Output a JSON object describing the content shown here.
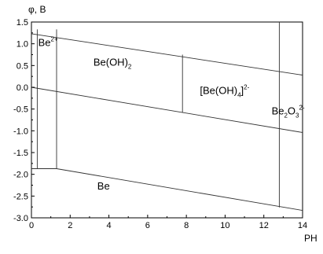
{
  "chart_data": {
    "type": "line",
    "title": "",
    "ylabel": "φ, B",
    "xlabel": "PH",
    "xlim": [
      0,
      14
    ],
    "ylim": [
      -3.0,
      1.5
    ],
    "x_ticks": [
      0,
      2,
      4,
      6,
      8,
      10,
      12,
      14
    ],
    "x_tick_labels": [
      "0",
      "2",
      "4",
      "6",
      "8",
      "10",
      "12",
      "14"
    ],
    "y_ticks": [
      1.5,
      1.0,
      0.5,
      0.0,
      -0.5,
      -1.0,
      -1.5,
      -2.0,
      -2.5,
      -3.0
    ],
    "y_tick_labels": [
      "1.5",
      "1.0",
      "0.5",
      "0.0",
      "-0.5",
      "-1.0",
      "-1.5",
      "-2.0",
      "-2.5",
      "-3.0"
    ],
    "grid": false,
    "series": [
      {
        "role": "O2/H2O boundary",
        "x": [
          0,
          14
        ],
        "y": [
          1.23,
          0.28
        ]
      },
      {
        "role": "H2O/H2 boundary",
        "x": [
          0,
          14
        ],
        "y": [
          0.0,
          -1.04
        ]
      },
      {
        "role": "Be deposition boundary",
        "x": [
          0,
          1.3,
          14
        ],
        "y": [
          -1.87,
          -1.87,
          -2.83
        ]
      },
      {
        "role": "Be2+ / Be(OH)2 boundary",
        "x": [
          1.3,
          1.3
        ],
        "y": [
          1.33,
          -1.87
        ]
      },
      {
        "role": "Be(OH)2 / [Be(OH)4]2- boundary",
        "x": [
          7.8,
          7.8
        ],
        "y": [
          0.75,
          -0.58
        ]
      },
      {
        "role": "[Be(OH)4]2- / Be2O3 2- boundary",
        "x": [
          12.8,
          12.8
        ],
        "y": [
          1.5,
          -2.76
        ]
      },
      {
        "role": "left edge line",
        "x": [
          0.3,
          0.3
        ],
        "y": [
          1.33,
          -1.87
        ]
      }
    ],
    "regions": [
      {
        "main": "Be",
        "sup": "2+",
        "sub": "",
        "tail": "",
        "x": 0.35,
        "y": 0.95
      },
      {
        "main": "Be(OH)",
        "sub": "2",
        "sup": "",
        "tail": "",
        "x": 3.2,
        "y": 0.5
      },
      {
        "main": "[Be(OH)",
        "sub": "4",
        "tail": "]",
        "sup": "2-",
        "x": 8.7,
        "y": -0.15
      },
      {
        "main": "Be",
        "sub": "2",
        "tail": "O",
        "sub2": "3",
        "sup": "2-",
        "x": 12.4,
        "y": -0.62
      },
      {
        "main": "Be",
        "sub": "",
        "sup": "",
        "tail": "",
        "x": 3.4,
        "y": -2.35
      }
    ]
  }
}
